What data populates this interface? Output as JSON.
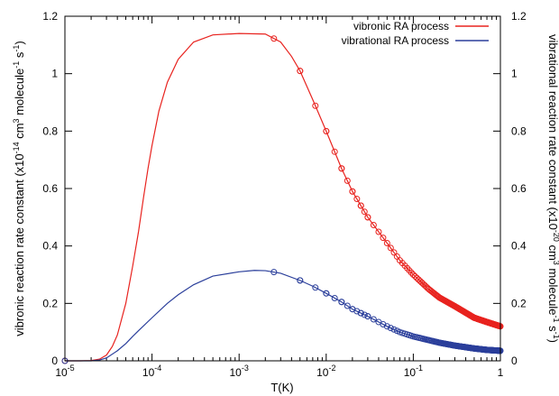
{
  "chart_data": {
    "type": "line",
    "xlabel": "T(K)",
    "ylabel_left": "vibronic reaction rate constant (x10^-14 cm^3 molecule^-1 s^-1)",
    "ylabel_right": "vibrational reaction rate constant (x10^-20 cm^3 molecule^-1 s^-1)",
    "x_scale": "log",
    "xlim": [
      1e-05,
      1
    ],
    "ylim_left": [
      0,
      1.2
    ],
    "ylim_right": [
      0,
      1.2
    ],
    "x_ticks": [
      {
        "value": 1e-05,
        "base": "10",
        "exp": "-5"
      },
      {
        "value": 0.0001,
        "base": "10",
        "exp": "-4"
      },
      {
        "value": 0.001,
        "base": "10",
        "exp": "-3"
      },
      {
        "value": 0.01,
        "base": "10",
        "exp": "-2"
      },
      {
        "value": 0.1,
        "base": "10",
        "exp": "-1"
      },
      {
        "value": 1,
        "base": "1",
        "exp": ""
      }
    ],
    "y_ticks": [
      "0",
      "0.2",
      "0.4",
      "0.6",
      "0.8",
      "1",
      "1.2"
    ],
    "legend_position": "top-right",
    "series": [
      {
        "name": "vibronic RA process",
        "axis": "left",
        "color": "#e8231f",
        "points": [
          [
            1e-05,
            0.0
          ],
          [
            1.5e-05,
            0.0
          ],
          [
            2e-05,
            0.001
          ],
          [
            2.5e-05,
            0.006
          ],
          [
            3e-05,
            0.02
          ],
          [
            3.5e-05,
            0.05
          ],
          [
            4e-05,
            0.09
          ],
          [
            5e-05,
            0.2
          ],
          [
            6e-05,
            0.33
          ],
          [
            7e-05,
            0.45
          ],
          [
            8e-05,
            0.57
          ],
          [
            9e-05,
            0.67
          ],
          [
            0.0001,
            0.75
          ],
          [
            0.00012,
            0.87
          ],
          [
            0.00015,
            0.97
          ],
          [
            0.0002,
            1.05
          ],
          [
            0.0003,
            1.11
          ],
          [
            0.0005,
            1.135
          ],
          [
            0.001,
            1.14
          ],
          [
            0.002,
            1.138
          ],
          [
            0.003,
            1.11
          ],
          [
            0.004,
            1.06
          ],
          [
            0.005,
            1.01
          ],
          [
            0.007,
            0.91
          ],
          [
            0.01,
            0.8
          ],
          [
            0.015,
            0.67
          ],
          [
            0.02,
            0.59
          ],
          [
            0.03,
            0.5
          ],
          [
            0.05,
            0.41
          ],
          [
            0.07,
            0.35
          ],
          [
            0.1,
            0.3
          ],
          [
            0.15,
            0.25
          ],
          [
            0.2,
            0.22
          ],
          [
            0.3,
            0.19
          ],
          [
            0.5,
            0.15
          ],
          [
            0.7,
            0.135
          ],
          [
            1,
            0.12
          ]
        ]
      },
      {
        "name": "vibrational RA process",
        "axis": "right",
        "color": "#2b3f9b",
        "points": [
          [
            1e-05,
            0.0
          ],
          [
            1.5e-05,
            0.0
          ],
          [
            2e-05,
            0.0
          ],
          [
            2.5e-05,
            0.003
          ],
          [
            3e-05,
            0.01
          ],
          [
            4e-05,
            0.035
          ],
          [
            5e-05,
            0.06
          ],
          [
            6e-05,
            0.085
          ],
          [
            7e-05,
            0.105
          ],
          [
            0.0001,
            0.15
          ],
          [
            0.00015,
            0.2
          ],
          [
            0.0002,
            0.23
          ],
          [
            0.0003,
            0.265
          ],
          [
            0.0005,
            0.295
          ],
          [
            0.001,
            0.31
          ],
          [
            0.0015,
            0.315
          ],
          [
            0.002,
            0.314
          ],
          [
            0.003,
            0.305
          ],
          [
            0.005,
            0.28
          ],
          [
            0.007,
            0.26
          ],
          [
            0.01,
            0.235
          ],
          [
            0.015,
            0.205
          ],
          [
            0.02,
            0.18
          ],
          [
            0.03,
            0.155
          ],
          [
            0.05,
            0.12
          ],
          [
            0.07,
            0.1
          ],
          [
            0.1,
            0.085
          ],
          [
            0.2,
            0.063
          ],
          [
            0.3,
            0.053
          ],
          [
            0.5,
            0.043
          ],
          [
            0.7,
            0.038
          ],
          [
            1,
            0.035
          ]
        ]
      }
    ]
  }
}
